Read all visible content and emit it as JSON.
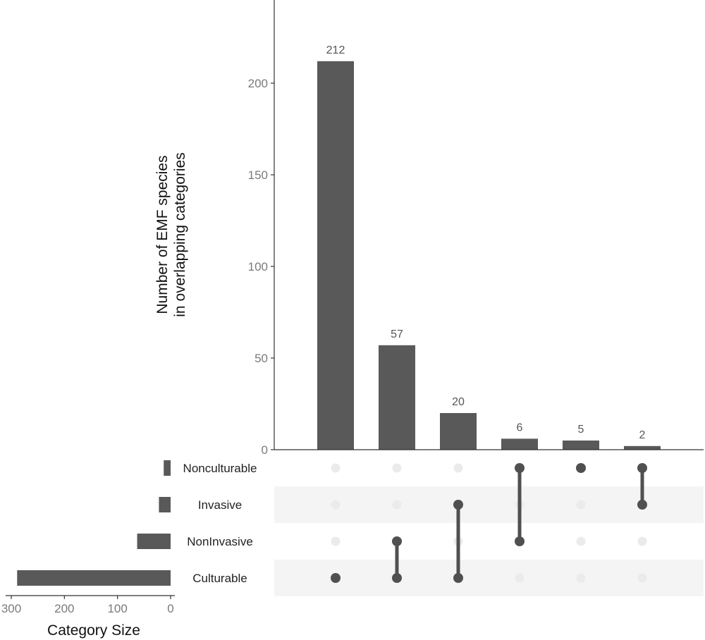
{
  "chart_data": {
    "type": "upset",
    "ylabel_line1": "Number of EMF species",
    "ylabel_line2": "in overlapping categories",
    "yticks": [
      0,
      50,
      100,
      150,
      200
    ],
    "ylim": [
      0,
      240
    ],
    "intersections": [
      {
        "value": 212,
        "label": "212",
        "members": [
          "Culturable"
        ]
      },
      {
        "value": 57,
        "label": "57",
        "members": [
          "NonInvasive",
          "Culturable"
        ]
      },
      {
        "value": 20,
        "label": "20",
        "members": [
          "Invasive",
          "Culturable"
        ]
      },
      {
        "value": 6,
        "label": "6",
        "members": [
          "Nonculturable",
          "NonInvasive"
        ]
      },
      {
        "value": 5,
        "label": "5",
        "members": [
          "Nonculturable"
        ]
      },
      {
        "value": 2,
        "label": "2",
        "members": [
          "Nonculturable",
          "Invasive"
        ]
      }
    ],
    "sets": [
      {
        "name": "Nonculturable",
        "size": 13
      },
      {
        "name": "Invasive",
        "size": 22
      },
      {
        "name": "NonInvasive",
        "size": 63
      },
      {
        "name": "Culturable",
        "size": 289
      }
    ],
    "set_size_label": "Category Size",
    "set_size_ticks": [
      300,
      200,
      100,
      0
    ],
    "set_size_lim": [
      0,
      300
    ],
    "colors": {
      "bar": "#595959",
      "dot_active": "#505050",
      "dot_inactive": "#ebebeb",
      "stripe": "#f4f4f4",
      "axis": "#333333"
    }
  }
}
